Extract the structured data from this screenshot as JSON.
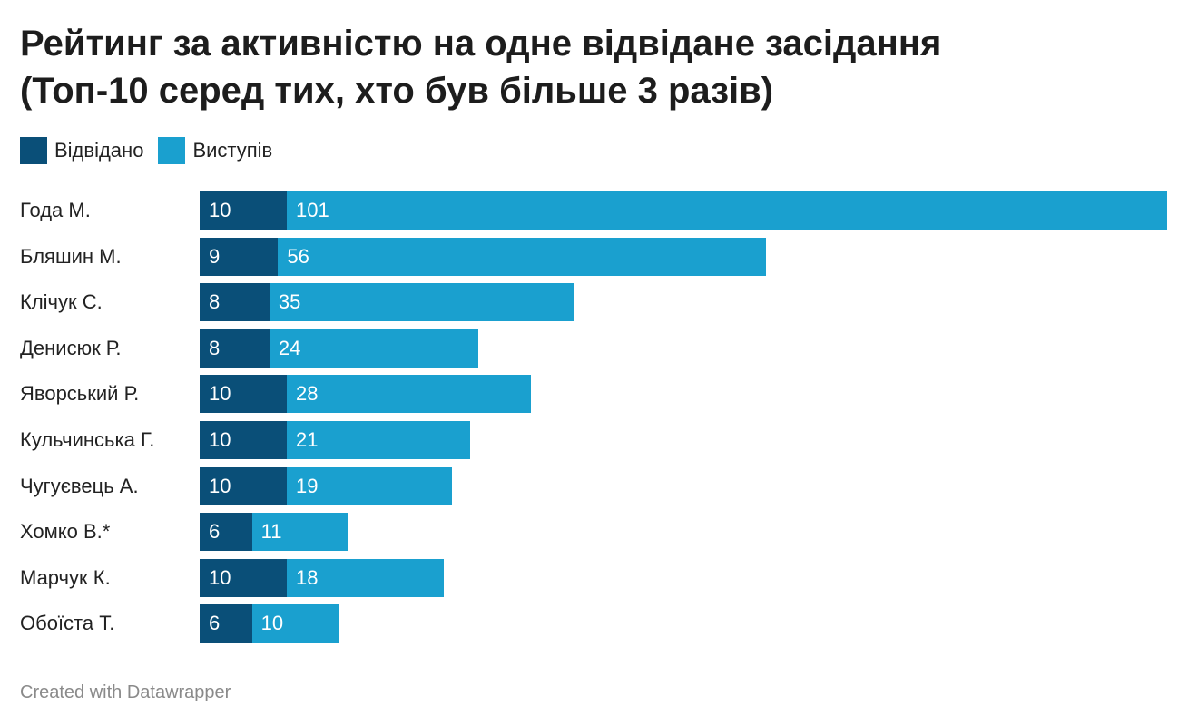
{
  "title_line1": "Рейтинг за активністю на одне відвідане засідання",
  "title_line2": "(Топ-10 серед тих, хто був більше 3 разів)",
  "footer": "Created with Datawrapper",
  "colors": {
    "visited": "#0a4f78",
    "speeches": "#1aa0cf"
  },
  "chart_data": {
    "type": "bar",
    "orientation": "horizontal",
    "stacked": true,
    "title": "Рейтинг за активністю на одне відвідане засідання (Топ-10 серед тих, хто був більше 3 разів)",
    "legend": {
      "placement": "top-left",
      "entries": [
        "Відвідано",
        "Виступів"
      ]
    },
    "categories": [
      "Года М.",
      "Бляшин М.",
      "Клічук С.",
      "Денисюк Р.",
      "Яворський Р.",
      "Кульчинська Г.",
      "Чугуєвець А.",
      "Хомко В.*",
      "Марчук К.",
      "Обоїста Т."
    ],
    "series": [
      {
        "name": "Відвідано",
        "values": [
          10,
          9,
          8,
          8,
          10,
          10,
          10,
          6,
          10,
          6
        ]
      },
      {
        "name": "Виступів",
        "values": [
          101,
          56,
          35,
          24,
          28,
          21,
          19,
          11,
          18,
          10
        ]
      }
    ],
    "xlim": [
      0,
      111
    ],
    "grid": false
  }
}
